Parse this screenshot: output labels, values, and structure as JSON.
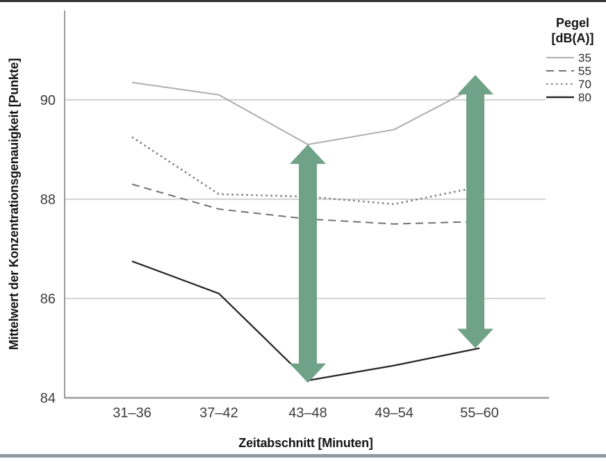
{
  "chart_data": {
    "type": "line",
    "title": "",
    "xlabel": "Zeitabschnitt [Minuten]",
    "ylabel": "Mittelwert der Konzentrationsgenauigkeit [Punkte]",
    "categories": [
      "31–36",
      "37–42",
      "43–48",
      "49–54",
      "55–60"
    ],
    "series": [
      {
        "name": "35",
        "style": "solid-light",
        "values": [
          90.35,
          90.1,
          89.1,
          89.4,
          90.3
        ]
      },
      {
        "name": "55",
        "style": "dashed",
        "values": [
          88.3,
          87.8,
          87.6,
          87.5,
          87.55
        ]
      },
      {
        "name": "70",
        "style": "dotted",
        "values": [
          89.25,
          88.1,
          88.05,
          87.9,
          88.25
        ]
      },
      {
        "name": "80",
        "style": "solid-dark",
        "values": [
          86.75,
          86.1,
          84.35,
          84.65,
          85.0
        ]
      }
    ],
    "ylim": [
      84,
      91.8
    ],
    "yticks": [
      84,
      86,
      88,
      90
    ],
    "grid": true,
    "legend_title": [
      "Pegel",
      "[dB(A)]"
    ],
    "legend_position": "top-right",
    "annotations": [
      {
        "type": "double-arrow",
        "category_index": 2,
        "dx": 0,
        "from": 84.3,
        "to": 89.1
      },
      {
        "type": "double-arrow",
        "category_index": 4,
        "dx": -6,
        "from": 85.0,
        "to": 90.5
      }
    ]
  },
  "colors": {
    "series_35": "#aeaeae",
    "series_55": "#6f746f",
    "series_70": "#7b807a",
    "series_80": "#272727",
    "grid": "#cbcbcb",
    "axis": "#9a9a9a",
    "arrow": "#6fa287",
    "rule_top": "#333333",
    "rule_bottom": "#8e99a2"
  }
}
